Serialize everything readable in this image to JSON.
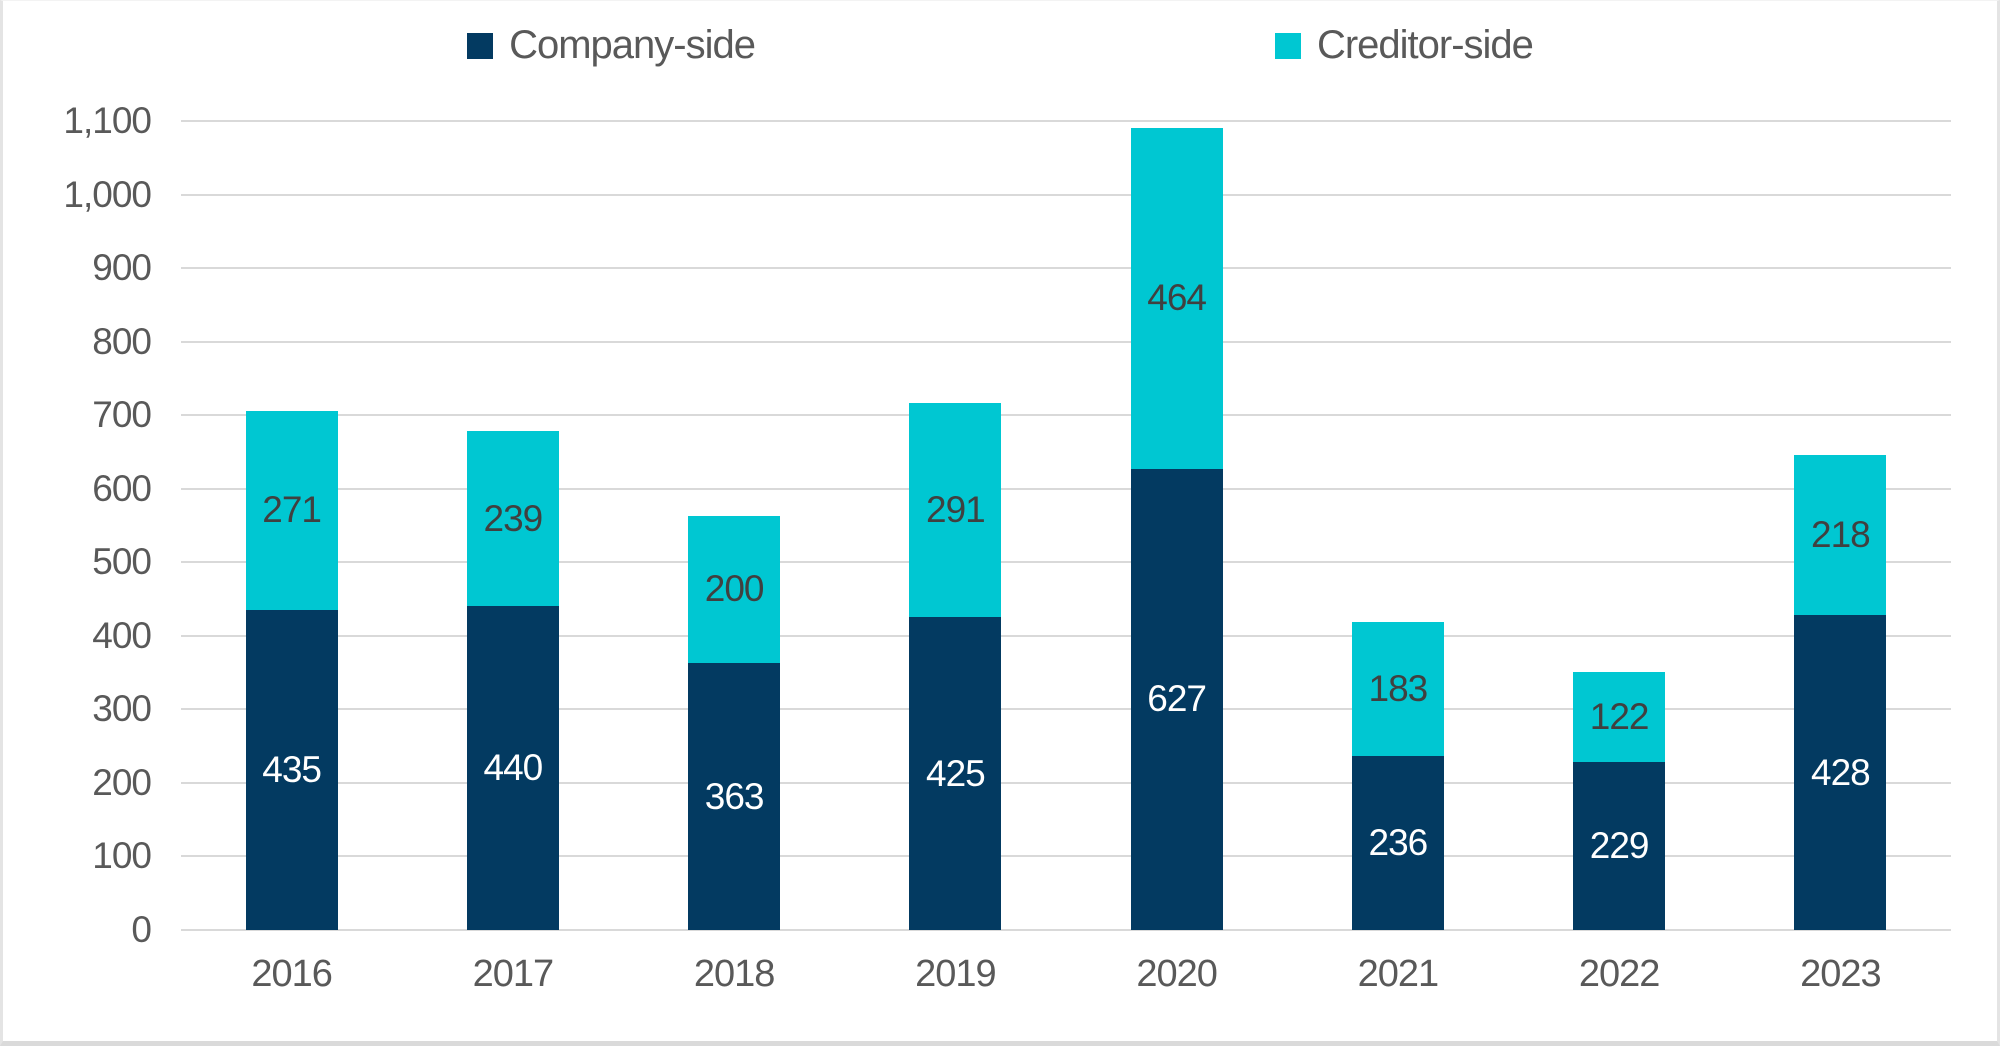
{
  "legend": [
    {
      "label": "Company-side",
      "color": "#033A61"
    },
    {
      "label": "Creditor-side",
      "color": "#00C7D2"
    }
  ],
  "colors": {
    "company": "#033A61",
    "creditor": "#00C7D2",
    "gridline": "#d9d9d9",
    "axis_text": "#595959",
    "label_on_company": "#FFFFFF",
    "label_on_creditor": "#404040"
  },
  "chart_data": {
    "type": "bar",
    "stacked": true,
    "title": "",
    "xlabel": "",
    "ylabel": "",
    "categories": [
      "2016",
      "2017",
      "2018",
      "2019",
      "2020",
      "2021",
      "2022",
      "2023"
    ],
    "series": [
      {
        "name": "Company-side",
        "color": "#033A61",
        "label_color": "#FFFFFF",
        "values": [
          435,
          440,
          363,
          425,
          627,
          236,
          229,
          428
        ]
      },
      {
        "name": "Creditor-side",
        "color": "#00C7D2",
        "label_color": "#404040",
        "values": [
          271,
          239,
          200,
          291,
          464,
          183,
          122,
          218
        ]
      }
    ],
    "y_axis": {
      "min": 0,
      "max": 1100,
      "step": 100,
      "tick_labels": [
        "0",
        "100",
        "200",
        "300",
        "400",
        "500",
        "600",
        "700",
        "800",
        "900",
        "1,000",
        "1,100"
      ]
    },
    "grid": true,
    "legend_position": "top",
    "data_labels": "inside-center"
  }
}
